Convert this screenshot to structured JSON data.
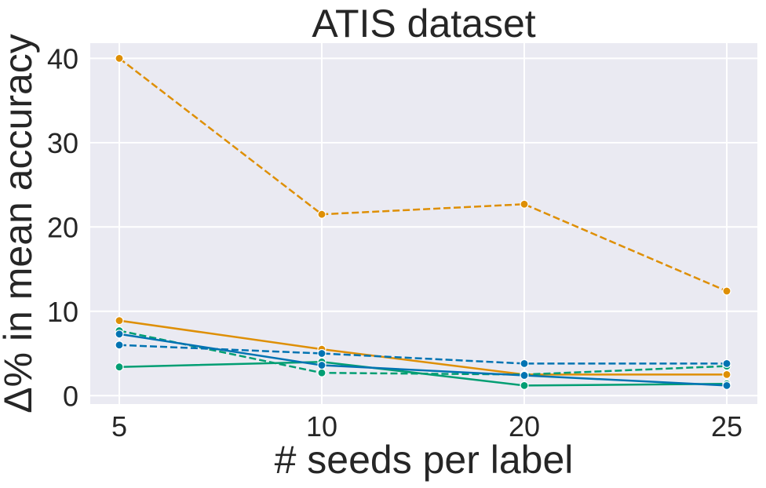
{
  "chart_data": {
    "type": "line",
    "title": "ATIS dataset",
    "xlabel": "# seeds per label",
    "ylabel": "Δ% in mean accuracy",
    "x": [
      5,
      10,
      20,
      25
    ],
    "x_tick_labels": [
      "5",
      "10",
      "20",
      "25"
    ],
    "y_ticks": [
      0,
      10,
      20,
      30,
      40
    ],
    "y_tick_labels": [
      "0",
      "10",
      "20",
      "30",
      "40"
    ],
    "ylim": [
      -1,
      41.8
    ],
    "grid": true,
    "legend": "none",
    "series": [
      {
        "values": [
          40.0,
          21.5,
          22.7,
          12.4
        ],
        "color": "#de8f05",
        "dash": true
      },
      {
        "values": [
          8.9,
          5.5,
          2.5,
          2.5
        ],
        "color": "#de8f05",
        "dash": false
      },
      {
        "values": [
          7.7,
          2.7,
          2.5,
          3.5
        ],
        "color": "#029e73",
        "dash": true
      },
      {
        "values": [
          3.4,
          4.0,
          1.2,
          1.4
        ],
        "color": "#029e73",
        "dash": false
      },
      {
        "values": [
          6.0,
          5.0,
          3.8,
          3.8
        ],
        "color": "#0173b2",
        "dash": true
      },
      {
        "values": [
          7.3,
          3.6,
          2.4,
          1.2
        ],
        "color": "#0173b2",
        "dash": false
      }
    ]
  }
}
